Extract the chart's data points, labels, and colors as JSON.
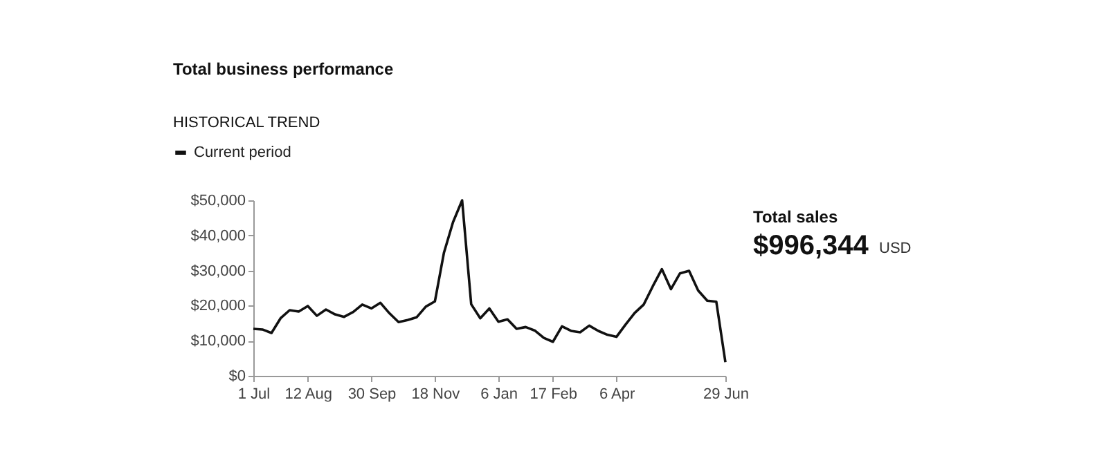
{
  "chart_data": {
    "type": "line",
    "title": "Total business performance",
    "subtitle": "HISTORICAL TREND",
    "categories": [
      "1 Jul",
      null,
      null,
      null,
      null,
      null,
      "12 Aug",
      null,
      null,
      null,
      null,
      null,
      null,
      "30 Sep",
      null,
      null,
      null,
      null,
      null,
      null,
      "18 Nov",
      null,
      null,
      null,
      null,
      null,
      null,
      "6 Jan",
      null,
      null,
      null,
      null,
      null,
      "17 Feb",
      null,
      null,
      null,
      null,
      null,
      null,
      "6 Apr",
      null,
      null,
      null,
      null,
      null,
      null,
      null,
      null,
      null,
      null,
      null,
      "29 Jun"
    ],
    "series": [
      {
        "name": "Current period",
        "color": "#111111",
        "values": [
          13400,
          13200,
          12200,
          16400,
          18700,
          18300,
          19900,
          17100,
          18900,
          17500,
          16800,
          18200,
          20300,
          19200,
          20800,
          17800,
          15300,
          15900,
          16700,
          19700,
          21200,
          35100,
          43800,
          50000,
          20400,
          16400,
          19200,
          15400,
          16100,
          13400,
          13900,
          12900,
          10800,
          9700,
          14100,
          12800,
          12400,
          14300,
          12800,
          11700,
          11100,
          14600,
          17900,
          20300,
          25500,
          30400,
          24700,
          29200,
          29900,
          24300,
          21400,
          21100,
          3900
        ]
      }
    ],
    "ylim": [
      0,
      50000
    ],
    "yticks": [
      {
        "value": 0,
        "label": "$0"
      },
      {
        "value": 10000,
        "label": "$10,000"
      },
      {
        "value": 20000,
        "label": "$20,000"
      },
      {
        "value": 30000,
        "label": "$30,000"
      },
      {
        "value": 40000,
        "label": "$40,000"
      },
      {
        "value": 50000,
        "label": "$50,000"
      }
    ],
    "grid": false,
    "legend": "top left",
    "marker": "none",
    "line_style": "solid",
    "annotations": [
      "Total sales",
      "$996,344",
      "USD"
    ]
  }
}
